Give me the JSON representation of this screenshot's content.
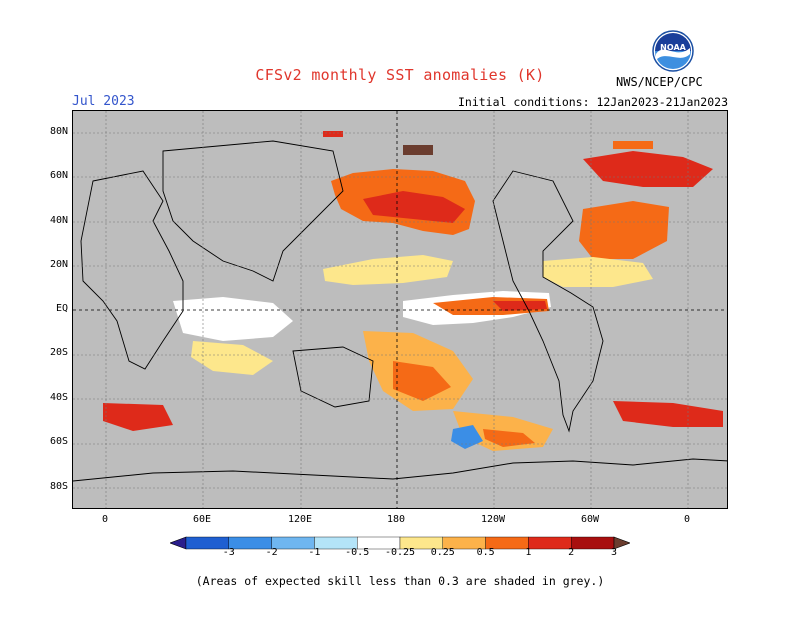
{
  "header": {
    "title": "CFSv2 monthly SST anomalies (K)",
    "month": "Jul 2023",
    "initial_conditions": "Initial conditions: 12Jan2023-21Jan2023",
    "agency": "NWS/NCEP/CPC",
    "logo_text": "NOAA"
  },
  "axes": {
    "lat_labels": [
      "80N",
      "60N",
      "40N",
      "20N",
      "EQ",
      "20S",
      "40S",
      "60S",
      "80S"
    ],
    "lon_labels": [
      "0",
      "60E",
      "120E",
      "180",
      "120W",
      "60W",
      "0"
    ]
  },
  "legend": {
    "labels": [
      "-3",
      "-2",
      "-1",
      "-0.5",
      "-0.25",
      "0.25",
      "0.5",
      "1",
      "2",
      "3"
    ],
    "colors": [
      "#2a1e8c",
      "#1f5fd1",
      "#3b8ee6",
      "#6fb6f0",
      "#b4e4f8",
      "#ffffff",
      "#fde78c",
      "#fcb24a",
      "#f56a16",
      "#de2a1a",
      "#a80f0f",
      "#6b3d2f"
    ]
  },
  "footnote": "(Areas of expected skill less than 0.3 are shaded in grey.)"
}
